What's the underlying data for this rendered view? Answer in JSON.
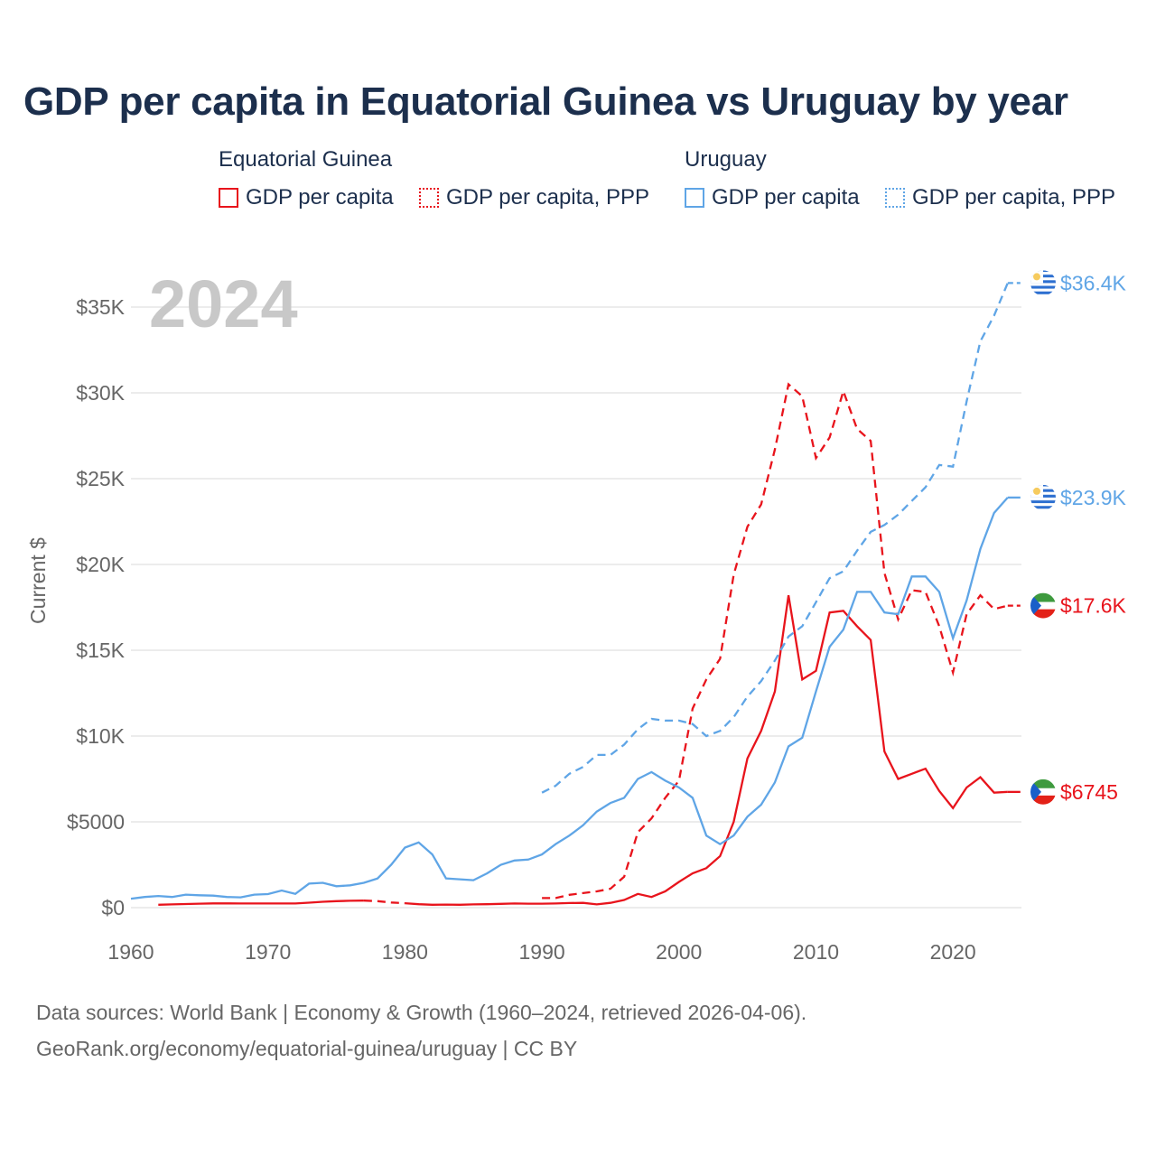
{
  "title": "GDP per capita in Equatorial Guinea vs Uruguay by year",
  "legend": {
    "groups": [
      {
        "name": "Equatorial Guinea",
        "color": "#e8141c",
        "items": [
          {
            "label": "GDP per capita",
            "style": "solid"
          },
          {
            "label": "GDP per capita, PPP",
            "style": "dotted"
          }
        ]
      },
      {
        "name": "Uruguay",
        "color": "#5fa5e6",
        "items": [
          {
            "label": "GDP per capita",
            "style": "solid"
          },
          {
            "label": "GDP per capita, PPP",
            "style": "dotted"
          }
        ]
      }
    ]
  },
  "year_watermark": "2024",
  "footer": {
    "line1": "Data sources: World Bank | Economy & Growth (1960–2024, retrieved 2026-04-06).",
    "line2": "GeoRank.org/economy/equatorial-guinea/uruguay | CC BY"
  },
  "colors": {
    "eq_guinea": "#e8141c",
    "uruguay": "#5fa5e6",
    "grid": "#e6e6e6",
    "axis_text": "#666666",
    "title": "#1c2f4d"
  },
  "chart_data": {
    "type": "line",
    "title": "GDP per capita in Equatorial Guinea vs Uruguay by year",
    "xlabel": "",
    "ylabel": "Current $",
    "xlim": [
      1960,
      2025
    ],
    "ylim": [
      0,
      37000
    ],
    "x_ticks": [
      1960,
      1970,
      1980,
      1990,
      2000,
      2010,
      2020
    ],
    "y_ticks": [
      0,
      5000,
      10000,
      15000,
      20000,
      25000,
      30000,
      35000
    ],
    "y_tick_labels": [
      "$0",
      "$5000",
      "$10K",
      "$15K",
      "$20K",
      "$25K",
      "$30K",
      "$35K"
    ],
    "grid": true,
    "series": [
      {
        "name": "Equatorial Guinea — GDP per capita",
        "country": "eq_guinea",
        "style": "solid",
        "end_label": "$6745",
        "points": [
          [
            1962,
            170
          ],
          [
            1963,
            190
          ],
          [
            1964,
            210
          ],
          [
            1965,
            230
          ],
          [
            1966,
            250
          ],
          [
            1967,
            250
          ],
          [
            1968,
            240
          ],
          [
            1969,
            240
          ],
          [
            1970,
            240
          ],
          [
            1971,
            240
          ],
          [
            1972,
            240
          ],
          [
            1973,
            290
          ],
          [
            1974,
            340
          ],
          [
            1975,
            380
          ],
          [
            1976,
            400
          ],
          [
            1977,
            410
          ],
          [
            1978,
            380
          ],
          [
            1979,
            300
          ],
          [
            1980,
            260
          ],
          [
            1981,
            200
          ],
          [
            1982,
            170
          ],
          [
            1983,
            180
          ],
          [
            1984,
            170
          ],
          [
            1985,
            190
          ],
          [
            1986,
            200
          ],
          [
            1987,
            220
          ],
          [
            1988,
            240
          ],
          [
            1989,
            230
          ],
          [
            1990,
            230
          ],
          [
            1991,
            240
          ],
          [
            1992,
            270
          ],
          [
            1993,
            280
          ],
          [
            1994,
            190
          ],
          [
            1995,
            280
          ],
          [
            1996,
            450
          ],
          [
            1997,
            800
          ],
          [
            1998,
            620
          ],
          [
            1999,
            950
          ],
          [
            2000,
            1500
          ],
          [
            2001,
            2000
          ],
          [
            2002,
            2300
          ],
          [
            2003,
            3000
          ],
          [
            2004,
            5000
          ],
          [
            2005,
            8700
          ],
          [
            2006,
            10300
          ],
          [
            2007,
            12600
          ],
          [
            2008,
            18200
          ],
          [
            2009,
            13300
          ],
          [
            2010,
            13800
          ],
          [
            2011,
            17200
          ],
          [
            2012,
            17300
          ],
          [
            2013,
            16400
          ],
          [
            2014,
            15600
          ],
          [
            2015,
            9100
          ],
          [
            2016,
            7500
          ],
          [
            2017,
            7800
          ],
          [
            2018,
            8100
          ],
          [
            2019,
            6800
          ],
          [
            2020,
            5800
          ],
          [
            2021,
            7000
          ],
          [
            2022,
            7600
          ],
          [
            2023,
            6700
          ],
          [
            2024,
            6745
          ]
        ],
        "dashed_gap": [
          1977,
          1980
        ]
      },
      {
        "name": "Equatorial Guinea — GDP per capita, PPP",
        "country": "eq_guinea",
        "style": "dashed",
        "end_label": "$17.6K",
        "points": [
          [
            1990,
            560
          ],
          [
            1991,
            560
          ],
          [
            1992,
            750
          ],
          [
            1993,
            850
          ],
          [
            1994,
            950
          ],
          [
            1995,
            1100
          ],
          [
            1996,
            1800
          ],
          [
            1997,
            4400
          ],
          [
            1998,
            5200
          ],
          [
            1999,
            6400
          ],
          [
            2000,
            7400
          ],
          [
            2001,
            11600
          ],
          [
            2002,
            13300
          ],
          [
            2003,
            14500
          ],
          [
            2004,
            19400
          ],
          [
            2005,
            22200
          ],
          [
            2006,
            23500
          ],
          [
            2007,
            26700
          ],
          [
            2008,
            30500
          ],
          [
            2009,
            29800
          ],
          [
            2010,
            26200
          ],
          [
            2011,
            27400
          ],
          [
            2012,
            30100
          ],
          [
            2013,
            27900
          ],
          [
            2014,
            27200
          ],
          [
            2015,
            19500
          ],
          [
            2016,
            16800
          ],
          [
            2017,
            18500
          ],
          [
            2018,
            18400
          ],
          [
            2019,
            16400
          ],
          [
            2020,
            13700
          ],
          [
            2021,
            17100
          ],
          [
            2022,
            18200
          ],
          [
            2023,
            17400
          ],
          [
            2024,
            17600
          ]
        ]
      },
      {
        "name": "Uruguay — GDP per capita",
        "country": "uruguay",
        "style": "solid",
        "end_label": "$23.9K",
        "points": [
          [
            1960,
            520
          ],
          [
            1961,
            620
          ],
          [
            1962,
            680
          ],
          [
            1963,
            620
          ],
          [
            1964,
            760
          ],
          [
            1965,
            720
          ],
          [
            1966,
            700
          ],
          [
            1967,
            620
          ],
          [
            1968,
            600
          ],
          [
            1969,
            760
          ],
          [
            1970,
            790
          ],
          [
            1971,
            1000
          ],
          [
            1972,
            800
          ],
          [
            1973,
            1400
          ],
          [
            1974,
            1450
          ],
          [
            1975,
            1250
          ],
          [
            1976,
            1300
          ],
          [
            1977,
            1450
          ],
          [
            1978,
            1700
          ],
          [
            1979,
            2500
          ],
          [
            1980,
            3500
          ],
          [
            1981,
            3800
          ],
          [
            1982,
            3100
          ],
          [
            1983,
            1700
          ],
          [
            1984,
            1650
          ],
          [
            1985,
            1600
          ],
          [
            1986,
            2000
          ],
          [
            1987,
            2500
          ],
          [
            1988,
            2750
          ],
          [
            1989,
            2800
          ],
          [
            1990,
            3100
          ],
          [
            1991,
            3700
          ],
          [
            1992,
            4200
          ],
          [
            1993,
            4800
          ],
          [
            1994,
            5600
          ],
          [
            1995,
            6100
          ],
          [
            1996,
            6400
          ],
          [
            1997,
            7500
          ],
          [
            1998,
            7900
          ],
          [
            1999,
            7400
          ],
          [
            2000,
            7000
          ],
          [
            2001,
            6400
          ],
          [
            2002,
            4200
          ],
          [
            2003,
            3700
          ],
          [
            2004,
            4200
          ],
          [
            2005,
            5300
          ],
          [
            2006,
            6000
          ],
          [
            2007,
            7300
          ],
          [
            2008,
            9400
          ],
          [
            2009,
            9900
          ],
          [
            2010,
            12600
          ],
          [
            2011,
            15200
          ],
          [
            2012,
            16200
          ],
          [
            2013,
            18400
          ],
          [
            2014,
            18400
          ],
          [
            2015,
            17200
          ],
          [
            2016,
            17100
          ],
          [
            2017,
            19300
          ],
          [
            2018,
            19300
          ],
          [
            2019,
            18400
          ],
          [
            2020,
            15700
          ],
          [
            2021,
            17900
          ],
          [
            2022,
            20900
          ],
          [
            2023,
            23000
          ],
          [
            2024,
            23900
          ]
        ]
      },
      {
        "name": "Uruguay — GDP per capita, PPP",
        "country": "uruguay",
        "style": "dashed",
        "end_label": "$36.4K",
        "points": [
          [
            1990,
            6700
          ],
          [
            1991,
            7100
          ],
          [
            1992,
            7800
          ],
          [
            1993,
            8200
          ],
          [
            1994,
            8900
          ],
          [
            1995,
            8900
          ],
          [
            1996,
            9500
          ],
          [
            1997,
            10400
          ],
          [
            1998,
            11000
          ],
          [
            1999,
            10900
          ],
          [
            2000,
            10900
          ],
          [
            2001,
            10700
          ],
          [
            2002,
            10000
          ],
          [
            2003,
            10300
          ],
          [
            2004,
            11100
          ],
          [
            2005,
            12300
          ],
          [
            2006,
            13200
          ],
          [
            2007,
            14400
          ],
          [
            2008,
            15800
          ],
          [
            2009,
            16400
          ],
          [
            2010,
            17800
          ],
          [
            2011,
            19200
          ],
          [
            2012,
            19600
          ],
          [
            2013,
            20800
          ],
          [
            2014,
            21900
          ],
          [
            2015,
            22300
          ],
          [
            2016,
            22900
          ],
          [
            2017,
            23700
          ],
          [
            2018,
            24500
          ],
          [
            2019,
            25800
          ],
          [
            2020,
            25700
          ],
          [
            2021,
            29500
          ],
          [
            2022,
            33000
          ],
          [
            2023,
            34500
          ],
          [
            2024,
            36400
          ]
        ]
      }
    ]
  }
}
